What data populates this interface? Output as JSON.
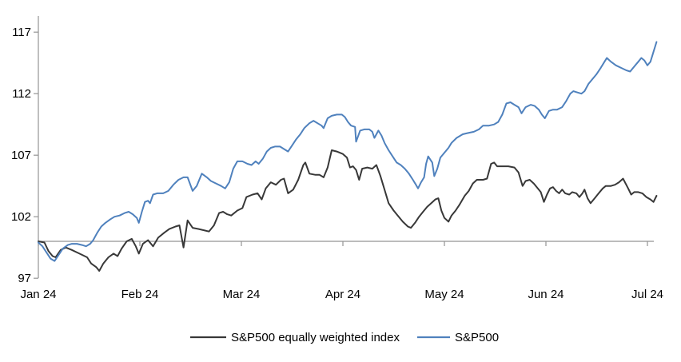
{
  "chart_data": {
    "type": "line",
    "title": "",
    "x_axis": {
      "tick_labels": [
        "Jan 24",
        "Feb 24",
        "Mar 24",
        "Apr 24",
        "May 24",
        "Jun 24",
        "Jul 24"
      ],
      "tick_positions_months": [
        0,
        1,
        2,
        3,
        4,
        5,
        6
      ],
      "range_months": [
        0,
        6.1
      ]
    },
    "y_axis": {
      "tick_labels": [
        "97",
        "102",
        "107",
        "112",
        "117"
      ],
      "tick_values": [
        97,
        102,
        107,
        112,
        117
      ],
      "range": [
        97,
        117
      ],
      "baseline_value": 100
    },
    "legend": {
      "position": "bottom",
      "items": [
        "S&P500 equally weighted index",
        "S&P500"
      ]
    },
    "series": [
      {
        "name": "S&P500 equally weighted index",
        "color": "#383838",
        "points": [
          [
            0,
            100
          ],
          [
            0.06,
            99.9
          ],
          [
            0.1,
            99.2
          ],
          [
            0.14,
            98.8
          ],
          [
            0.17,
            98.7
          ],
          [
            0.22,
            99.3
          ],
          [
            0.27,
            99.5
          ],
          [
            0.33,
            99.3
          ],
          [
            0.38,
            99.1
          ],
          [
            0.43,
            98.9
          ],
          [
            0.48,
            98.7
          ],
          [
            0.52,
            98.2
          ],
          [
            0.57,
            97.9
          ],
          [
            0.6,
            97.6
          ],
          [
            0.64,
            98.2
          ],
          [
            0.69,
            98.7
          ],
          [
            0.74,
            99
          ],
          [
            0.78,
            98.8
          ],
          [
            0.82,
            99.4
          ],
          [
            0.87,
            100
          ],
          [
            0.92,
            100.2
          ],
          [
            0.96,
            99.6
          ],
          [
            0.99,
            99
          ],
          [
            1.03,
            99.8
          ],
          [
            1.08,
            100.1
          ],
          [
            1.13,
            99.6
          ],
          [
            1.18,
            100.3
          ],
          [
            1.24,
            100.7
          ],
          [
            1.29,
            101
          ],
          [
            1.35,
            101.2
          ],
          [
            1.39,
            101.3
          ],
          [
            1.43,
            99.5
          ],
          [
            1.47,
            101.7
          ],
          [
            1.52,
            101.1
          ],
          [
            1.58,
            101
          ],
          [
            1.63,
            100.9
          ],
          [
            1.68,
            100.8
          ],
          [
            1.73,
            101.3
          ],
          [
            1.78,
            102.3
          ],
          [
            1.82,
            102.4
          ],
          [
            1.86,
            102.2
          ],
          [
            1.9,
            102.1
          ],
          [
            1.96,
            102.5
          ],
          [
            2.01,
            102.7
          ],
          [
            2.05,
            103.6
          ],
          [
            2.11,
            103.8
          ],
          [
            2.16,
            103.9
          ],
          [
            2.2,
            103.4
          ],
          [
            2.24,
            104.3
          ],
          [
            2.29,
            104.8
          ],
          [
            2.34,
            104.6
          ],
          [
            2.39,
            105
          ],
          [
            2.42,
            105.1
          ],
          [
            2.46,
            103.9
          ],
          [
            2.51,
            104.2
          ],
          [
            2.56,
            105
          ],
          [
            2.61,
            106.2
          ],
          [
            2.63,
            106.4
          ],
          [
            2.67,
            105.5
          ],
          [
            2.73,
            105.4
          ],
          [
            2.77,
            105.4
          ],
          [
            2.81,
            105.2
          ],
          [
            2.85,
            106
          ],
          [
            2.89,
            107.4
          ],
          [
            2.94,
            107.3
          ],
          [
            3,
            107.1
          ],
          [
            3.04,
            106.8
          ],
          [
            3.07,
            106
          ],
          [
            3.1,
            106.1
          ],
          [
            3.13,
            105.8
          ],
          [
            3.16,
            105
          ],
          [
            3.19,
            105.9
          ],
          [
            3.24,
            106
          ],
          [
            3.29,
            105.9
          ],
          [
            3.33,
            106.2
          ],
          [
            3.37,
            105.3
          ],
          [
            3.41,
            104.2
          ],
          [
            3.45,
            103.1
          ],
          [
            3.5,
            102.5
          ],
          [
            3.54,
            102.1
          ],
          [
            3.59,
            101.6
          ],
          [
            3.64,
            101.2
          ],
          [
            3.67,
            101.1
          ],
          [
            3.71,
            101.5
          ],
          [
            3.75,
            102
          ],
          [
            3.79,
            102.4
          ],
          [
            3.83,
            102.8
          ],
          [
            3.87,
            103.1
          ],
          [
            3.91,
            103.4
          ],
          [
            3.94,
            103.5
          ],
          [
            3.97,
            102.5
          ],
          [
            4,
            101.9
          ],
          [
            4.04,
            101.6
          ],
          [
            4.07,
            102.1
          ],
          [
            4.11,
            102.5
          ],
          [
            4.15,
            103
          ],
          [
            4.2,
            103.7
          ],
          [
            4.24,
            104.1
          ],
          [
            4.28,
            104.7
          ],
          [
            4.32,
            105
          ],
          [
            4.38,
            105
          ],
          [
            4.42,
            105.1
          ],
          [
            4.46,
            106.3
          ],
          [
            4.49,
            106.4
          ],
          [
            4.52,
            106.1
          ],
          [
            4.57,
            106.1
          ],
          [
            4.63,
            106.1
          ],
          [
            4.69,
            106
          ],
          [
            4.73,
            105.6
          ],
          [
            4.77,
            104.5
          ],
          [
            4.8,
            104.9
          ],
          [
            4.84,
            105
          ],
          [
            4.88,
            104.7
          ],
          [
            4.91,
            104.4
          ],
          [
            4.95,
            104
          ],
          [
            4.98,
            103.2
          ],
          [
            5.01,
            103.8
          ],
          [
            5.04,
            104.3
          ],
          [
            5.07,
            104.4
          ],
          [
            5.1,
            104.1
          ],
          [
            5.13,
            103.9
          ],
          [
            5.16,
            104.2
          ],
          [
            5.19,
            103.9
          ],
          [
            5.23,
            103.8
          ],
          [
            5.26,
            104
          ],
          [
            5.3,
            103.9
          ],
          [
            5.33,
            103.6
          ],
          [
            5.36,
            103.9
          ],
          [
            5.38,
            104.2
          ],
          [
            5.41,
            103.5
          ],
          [
            5.44,
            103.1
          ],
          [
            5.48,
            103.5
          ],
          [
            5.52,
            103.9
          ],
          [
            5.56,
            104.3
          ],
          [
            5.59,
            104.5
          ],
          [
            5.64,
            104.5
          ],
          [
            5.68,
            104.6
          ],
          [
            5.72,
            104.8
          ],
          [
            5.76,
            105.1
          ],
          [
            5.81,
            104.3
          ],
          [
            5.84,
            103.8
          ],
          [
            5.87,
            104
          ],
          [
            5.91,
            104
          ],
          [
            5.95,
            103.9
          ],
          [
            5.99,
            103.6
          ],
          [
            6.03,
            103.4
          ],
          [
            6.06,
            103.2
          ],
          [
            6.09,
            103.7
          ]
        ]
      },
      {
        "name": "S&P500",
        "color": "#4F81BD",
        "points": [
          [
            0,
            99.9
          ],
          [
            0.04,
            99.6
          ],
          [
            0.08,
            99.1
          ],
          [
            0.12,
            98.6
          ],
          [
            0.16,
            98.4
          ],
          [
            0.2,
            98.9
          ],
          [
            0.24,
            99.4
          ],
          [
            0.29,
            99.7
          ],
          [
            0.33,
            99.8
          ],
          [
            0.38,
            99.8
          ],
          [
            0.43,
            99.7
          ],
          [
            0.47,
            99.6
          ],
          [
            0.51,
            99.8
          ],
          [
            0.54,
            100.1
          ],
          [
            0.58,
            100.7
          ],
          [
            0.62,
            101.2
          ],
          [
            0.66,
            101.5
          ],
          [
            0.71,
            101.8
          ],
          [
            0.75,
            102
          ],
          [
            0.8,
            102.1
          ],
          [
            0.85,
            102.3
          ],
          [
            0.89,
            102.4
          ],
          [
            0.93,
            102.2
          ],
          [
            0.97,
            101.9
          ],
          [
            0.99,
            101.5
          ],
          [
            1.02,
            102.4
          ],
          [
            1.05,
            103.2
          ],
          [
            1.08,
            103.3
          ],
          [
            1.1,
            103.1
          ],
          [
            1.13,
            103.8
          ],
          [
            1.17,
            103.9
          ],
          [
            1.23,
            103.9
          ],
          [
            1.28,
            104.1
          ],
          [
            1.33,
            104.6
          ],
          [
            1.38,
            105
          ],
          [
            1.43,
            105.2
          ],
          [
            1.47,
            105.2
          ],
          [
            1.52,
            104.1
          ],
          [
            1.56,
            104.5
          ],
          [
            1.61,
            105.5
          ],
          [
            1.66,
            105.2
          ],
          [
            1.7,
            104.9
          ],
          [
            1.75,
            104.7
          ],
          [
            1.8,
            104.5
          ],
          [
            1.84,
            104.3
          ],
          [
            1.88,
            104.8
          ],
          [
            1.92,
            105.9
          ],
          [
            1.96,
            106.5
          ],
          [
            2.01,
            106.5
          ],
          [
            2.06,
            106.3
          ],
          [
            2.1,
            106.2
          ],
          [
            2.14,
            106.5
          ],
          [
            2.17,
            106.3
          ],
          [
            2.21,
            106.7
          ],
          [
            2.25,
            107.3
          ],
          [
            2.29,
            107.6
          ],
          [
            2.33,
            107.7
          ],
          [
            2.38,
            107.7
          ],
          [
            2.42,
            107.5
          ],
          [
            2.46,
            107.3
          ],
          [
            2.5,
            107.8
          ],
          [
            2.54,
            108.3
          ],
          [
            2.58,
            108.7
          ],
          [
            2.62,
            109.2
          ],
          [
            2.67,
            109.6
          ],
          [
            2.71,
            109.8
          ],
          [
            2.75,
            109.6
          ],
          [
            2.79,
            109.4
          ],
          [
            2.81,
            109.2
          ],
          [
            2.85,
            110
          ],
          [
            2.89,
            110.2
          ],
          [
            2.94,
            110.3
          ],
          [
            2.99,
            110.3
          ],
          [
            3.02,
            110.1
          ],
          [
            3.05,
            109.7
          ],
          [
            3.08,
            109.4
          ],
          [
            3.12,
            109.3
          ],
          [
            3.13,
            108.1
          ],
          [
            3.17,
            109
          ],
          [
            3.21,
            109.1
          ],
          [
            3.26,
            109.1
          ],
          [
            3.29,
            108.9
          ],
          [
            3.31,
            108.4
          ],
          [
            3.35,
            109
          ],
          [
            3.38,
            108.6
          ],
          [
            3.41,
            108
          ],
          [
            3.45,
            107.4
          ],
          [
            3.49,
            106.9
          ],
          [
            3.53,
            106.4
          ],
          [
            3.57,
            106.2
          ],
          [
            3.61,
            105.9
          ],
          [
            3.65,
            105.5
          ],
          [
            3.69,
            105
          ],
          [
            3.72,
            104.6
          ],
          [
            3.74,
            104.3
          ],
          [
            3.77,
            104.8
          ],
          [
            3.8,
            105.2
          ],
          [
            3.82,
            106.3
          ],
          [
            3.84,
            106.9
          ],
          [
            3.88,
            106.4
          ],
          [
            3.9,
            105.3
          ],
          [
            3.93,
            105.9
          ],
          [
            3.96,
            106.8
          ],
          [
            4,
            107.2
          ],
          [
            4.04,
            107.6
          ],
          [
            4.07,
            108
          ],
          [
            4.12,
            108.4
          ],
          [
            4.18,
            108.7
          ],
          [
            4.23,
            108.8
          ],
          [
            4.29,
            108.9
          ],
          [
            4.34,
            109.1
          ],
          [
            4.38,
            109.4
          ],
          [
            4.44,
            109.4
          ],
          [
            4.49,
            109.5
          ],
          [
            4.53,
            109.7
          ],
          [
            4.57,
            110.3
          ],
          [
            4.61,
            111.2
          ],
          [
            4.65,
            111.3
          ],
          [
            4.69,
            111.1
          ],
          [
            4.73,
            110.9
          ],
          [
            4.76,
            110.4
          ],
          [
            4.8,
            110.9
          ],
          [
            4.85,
            111.1
          ],
          [
            4.89,
            111
          ],
          [
            4.93,
            110.7
          ],
          [
            4.96,
            110.3
          ],
          [
            4.99,
            110
          ],
          [
            5.03,
            110.6
          ],
          [
            5.07,
            110.7
          ],
          [
            5.11,
            110.7
          ],
          [
            5.16,
            110.9
          ],
          [
            5.2,
            111.4
          ],
          [
            5.24,
            112
          ],
          [
            5.27,
            112.2
          ],
          [
            5.31,
            112.1
          ],
          [
            5.35,
            112
          ],
          [
            5.38,
            112.2
          ],
          [
            5.42,
            112.8
          ],
          [
            5.46,
            113.2
          ],
          [
            5.5,
            113.6
          ],
          [
            5.54,
            114.1
          ],
          [
            5.57,
            114.5
          ],
          [
            5.6,
            114.9
          ],
          [
            5.64,
            114.6
          ],
          [
            5.69,
            114.3
          ],
          [
            5.74,
            114.1
          ],
          [
            5.79,
            113.9
          ],
          [
            5.83,
            113.8
          ],
          [
            5.87,
            114.2
          ],
          [
            5.91,
            114.6
          ],
          [
            5.94,
            114.9
          ],
          [
            5.97,
            114.7
          ],
          [
            6,
            114.3
          ],
          [
            6.03,
            114.6
          ],
          [
            6.06,
            115.4
          ],
          [
            6.09,
            116.2
          ]
        ]
      }
    ]
  },
  "colors": {
    "background": "#ffffff",
    "axis": "#949494",
    "text": "#000000"
  }
}
